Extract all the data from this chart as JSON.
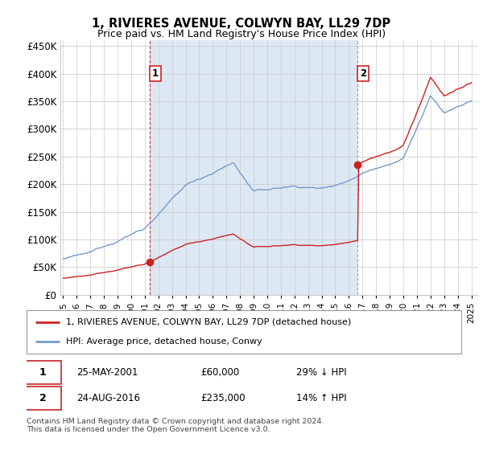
{
  "title": "1, RIVIERES AVENUE, COLWYN BAY, LL29 7DP",
  "subtitle": "Price paid vs. HM Land Registry's House Price Index (HPI)",
  "legend_line1": "1, RIVIERES AVENUE, COLWYN BAY, LL29 7DP (detached house)",
  "legend_line2": "HPI: Average price, detached house, Conwy",
  "table_row1": [
    "1",
    "25-MAY-2001",
    "£60,000",
    "29% ↓ HPI"
  ],
  "table_row2": [
    "2",
    "24-AUG-2016",
    "£235,000",
    "14% ↑ HPI"
  ],
  "footer": "Contains HM Land Registry data © Crown copyright and database right 2024.\nThis data is licensed under the Open Government Licence v3.0.",
  "sale1_date": 2001.38,
  "sale1_price": 60000,
  "sale2_date": 2016.65,
  "sale2_price": 235000,
  "hpi_color": "#7799cc",
  "price_color": "#cc2222",
  "shade_color": "#dde8f5",
  "dashed1_color": "#cc2222",
  "dashed2_color": "#999999",
  "ylim_min": 0,
  "ylim_max": 460000,
  "xlim_min": 1994.8,
  "xlim_max": 2025.5,
  "background_color": "#ffffff",
  "grid_color": "#cccccc"
}
